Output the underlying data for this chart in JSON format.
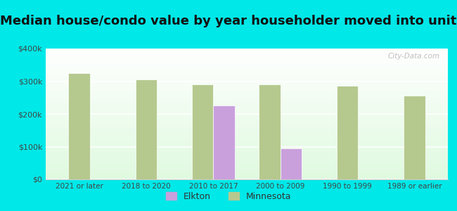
{
  "title": "Median house/condo value by year householder moved into unit",
  "categories": [
    "2021 or later",
    "2018 to 2020",
    "2010 to 2017",
    "2000 to 2009",
    "1990 to 1999",
    "1989 or earlier"
  ],
  "elkton_values": [
    null,
    null,
    225000,
    95000,
    null,
    null
  ],
  "minnesota_values": [
    325000,
    305000,
    290000,
    290000,
    285000,
    255000
  ],
  "elkton_color": "#c9a0dc",
  "minnesota_color": "#b5c98e",
  "background_color": "#00e8e8",
  "plot_bg_color": "#edfaed",
  "ylim": [
    0,
    400000
  ],
  "yticks": [
    0,
    100000,
    200000,
    300000,
    400000
  ],
  "ytick_labels": [
    "$0",
    "$100k",
    "$200k",
    "$300k",
    "$400k"
  ],
  "title_fontsize": 13,
  "legend_labels": [
    "Elkton",
    "Minnesota"
  ],
  "watermark": "City-Data.com",
  "bar_width": 0.32,
  "fig_width": 6.5,
  "fig_height": 3.0
}
